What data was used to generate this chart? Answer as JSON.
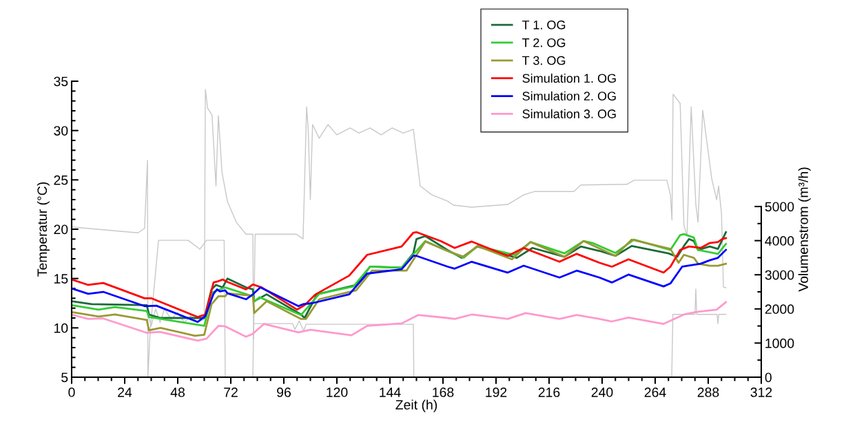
{
  "chart_data": {
    "type": "line",
    "xlabel": "Zeit (h)",
    "ylabel": "Temperatur (°C)",
    "y2label": "Volumenstrom (m³/h)",
    "xlim": [
      0,
      312
    ],
    "xticks": [
      0,
      24,
      48,
      72,
      96,
      120,
      144,
      168,
      192,
      216,
      240,
      264,
      288,
      312
    ],
    "ylim": [
      5,
      35
    ],
    "yticks": [
      5,
      10,
      15,
      20,
      25,
      30,
      35
    ],
    "y2lim": [
      0,
      8670
    ],
    "y2ticks": [
      0,
      1000,
      2000,
      3000,
      4000,
      5000
    ],
    "legend": "top",
    "series": [
      {
        "axis": "y2",
        "color": "#c8c8c8",
        "x": [
          0,
          22.8,
          30,
          33,
          34.3,
          34.5,
          35.6,
          39.3,
          52.7,
          58,
          61,
          69,
          69.5,
          82,
          82.3,
          100,
          101,
          103,
          105,
          106,
          154.6,
          154.8,
          271.5,
          272,
          282,
          282.4,
          282.8,
          292,
          292.4,
          292.8,
          296
        ],
        "values": [
          4400,
          4270,
          4230,
          4360,
          6350,
          20,
          1430,
          4010,
          4010,
          3750,
          4010,
          4010,
          0,
          0,
          1570,
          1570,
          1400,
          1650,
          1350,
          1550,
          1550,
          0,
          0,
          1840,
          1840,
          2580,
          1840,
          1840,
          1570,
          1840,
          1840
        ]
      },
      {
        "axis": "y2",
        "color": "#c8c8c8",
        "x": [
          34.6,
          36,
          38,
          40,
          42,
          45,
          48,
          51,
          54,
          57,
          60,
          60.5,
          61.5,
          63.5,
          65.3,
          66.4,
          68,
          70.5,
          74.5,
          78.9,
          82,
          82.3,
          83,
          101.6,
          104.7,
          106.3,
          107,
          108,
          109,
          112,
          116,
          120,
          126,
          130,
          135,
          140,
          145,
          150,
          154.6,
          157.7,
          163,
          170,
          172.7,
          181,
          197.3,
          204.5,
          209.6,
          227.2,
          230.4,
          251.2,
          254.4,
          269.3,
          270.9,
          271.6,
          272.1,
          275.3,
          277,
          278.4,
          280.3,
          282.4,
          283.4,
          285.5,
          289.6,
          291.8,
          292.7,
          294,
          294.9,
          296
        ],
        "values": [
          1800,
          1500,
          2000,
          1600,
          2000,
          1700,
          1900,
          1600,
          1800,
          1600,
          1700,
          8430,
          7880,
          7680,
          5600,
          7660,
          6010,
          5140,
          4540,
          4190,
          4190,
          1110,
          4190,
          4190,
          4050,
          7920,
          7300,
          5200,
          7400,
          7000,
          7400,
          7100,
          7300,
          7150,
          7300,
          7100,
          7300,
          7150,
          7260,
          5600,
          5340,
          5160,
          5040,
          4980,
          5060,
          5340,
          5440,
          5440,
          5630,
          5650,
          5770,
          5770,
          5340,
          4600,
          8290,
          8020,
          4460,
          4130,
          7920,
          5060,
          4540,
          7820,
          5810,
          5200,
          5600,
          4800,
          2640,
          2620
        ]
      },
      {
        "name": "T 1. OG",
        "color": "#1a6b3a",
        "x": [
          0,
          9,
          34,
          35,
          40.2,
          60,
          63.3,
          65.3,
          68.3,
          70.5,
          78.9,
          82,
          82.6,
          88.2,
          103.8,
          105.4,
          111,
          128.7,
          135,
          149.3,
          154.6,
          156,
          160,
          170,
          176.4,
          183.6,
          201.4,
          208.5,
          223,
          230.4,
          238.8,
          246,
          253.4,
          270,
          274,
          277,
          279.3,
          281.5,
          283.4,
          288.7,
          292.4,
          296
        ],
        "values": [
          12.7,
          12.4,
          12.3,
          11.35,
          11.0,
          11.0,
          13.9,
          14.35,
          14.1,
          15.0,
          14.1,
          13.9,
          12.7,
          13.4,
          11.35,
          11.0,
          13.4,
          14.35,
          16.2,
          16.1,
          17.55,
          19.0,
          19.3,
          17.9,
          17.1,
          18.25,
          17.1,
          18.1,
          17.2,
          18.25,
          17.8,
          17.3,
          18.3,
          17.55,
          17.2,
          18.3,
          19.0,
          18.8,
          17.9,
          18.25,
          18.0,
          19.7
        ]
      },
      {
        "name": "T 2. OG",
        "color": "#33cc33",
        "x": [
          0,
          12.2,
          19.6,
          34,
          35,
          60,
          63.6,
          69.5,
          82,
          82.8,
          85,
          103.8,
          112,
          127.5,
          135,
          149.3,
          160,
          170,
          177.4,
          183.6,
          200.4,
          207.6,
          223,
          231.6,
          235.7,
          246,
          254.4,
          270.9,
          275.3,
          277,
          281.5,
          283.4,
          292.4,
          296
        ],
        "values": [
          12.3,
          11.85,
          12.1,
          11.7,
          11.1,
          10.2,
          13.6,
          14.1,
          13.2,
          12.7,
          13.1,
          11.3,
          13.45,
          14.2,
          16.2,
          16.1,
          18.8,
          17.8,
          17.1,
          18.3,
          17.4,
          18.7,
          17.55,
          18.8,
          18.6,
          17.6,
          18.95,
          17.9,
          19.4,
          19.5,
          19.15,
          17.9,
          17.5,
          18.5
        ]
      },
      {
        "name": "T 3. OG",
        "color": "#999933",
        "x": [
          0,
          12.2,
          19.6,
          34,
          35,
          40.2,
          55.8,
          60,
          63.3,
          66.4,
          69.5,
          70.5,
          82,
          82.6,
          88.2,
          103.8,
          106,
          112,
          128.7,
          135.9,
          151.5,
          154.6,
          160,
          170,
          177.4,
          183.6,
          199.2,
          207.6,
          223,
          231.6,
          246,
          253.4,
          270.9,
          274.6,
          277,
          281.5,
          283.4,
          288.7,
          292.4,
          296
        ],
        "values": [
          11.6,
          11.15,
          11.35,
          10.8,
          9.75,
          10.0,
          9.2,
          9.3,
          12.4,
          13.2,
          13.2,
          13.5,
          13.25,
          11.5,
          12.7,
          10.9,
          10.9,
          12.9,
          13.8,
          15.8,
          15.8,
          16.9,
          18.75,
          17.8,
          17.2,
          18.3,
          16.95,
          18.7,
          17.2,
          18.8,
          17.3,
          18.95,
          18.0,
          16.6,
          17.4,
          17.1,
          16.5,
          16.3,
          16.3,
          16.5
        ]
      },
      {
        "name": "Simulation 1. OG",
        "color": "#ff0000",
        "x": [
          0,
          7.5,
          14.3,
          33,
          36,
          57,
          60.5,
          64.2,
          66,
          68.3,
          70,
          78.9,
          82,
          86,
          102,
          105.4,
          110.4,
          125.6,
          133.7,
          149.3,
          154.6,
          156,
          167,
          173.3,
          181,
          197.3,
          204.5,
          220.7,
          228.5,
          238.8,
          244.4,
          251.9,
          267.8,
          270.9,
          275.3,
          279.3,
          284.6,
          288.7,
          292.4,
          294.3,
          296
        ],
        "values": [
          14.9,
          14.35,
          14.55,
          13.0,
          13.0,
          11.1,
          11.35,
          14.6,
          14.7,
          14.9,
          14.7,
          13.9,
          14.4,
          14.1,
          11.85,
          12.3,
          13.4,
          15.3,
          17.4,
          18.25,
          19.65,
          19.7,
          18.8,
          18.1,
          18.75,
          17.3,
          18.1,
          16.7,
          17.5,
          16.6,
          16.2,
          16.95,
          15.6,
          16.2,
          17.9,
          18.25,
          18.1,
          18.6,
          18.7,
          19.0,
          19.1
        ]
      },
      {
        "name": "Simulation 2. OG",
        "color": "#0000ff",
        "x": [
          0,
          7.5,
          14.3,
          33,
          38.3,
          57,
          60.5,
          64.2,
          65.8,
          67,
          69.5,
          70.5,
          78.9,
          82,
          85.4,
          102.6,
          104.7,
          108.8,
          125.6,
          133.7,
          149.3,
          154.6,
          156,
          170.2,
          173.3,
          181,
          197.3,
          204.5,
          220.7,
          228.5,
          238.8,
          244.4,
          251.9,
          267.8,
          270.9,
          276.2,
          284.6,
          288.7,
          292.4,
          296
        ],
        "values": [
          14.0,
          13.45,
          13.65,
          12.2,
          12.25,
          10.6,
          11.2,
          13.45,
          13.9,
          13.7,
          13.8,
          13.5,
          12.9,
          13.4,
          14.1,
          12.2,
          12.4,
          12.5,
          13.4,
          15.5,
          15.95,
          17.3,
          17.3,
          16.2,
          16.0,
          16.7,
          15.6,
          16.3,
          15.1,
          15.8,
          15.1,
          14.6,
          15.4,
          14.2,
          14.5,
          16.2,
          16.5,
          16.85,
          17.1,
          17.9
        ]
      },
      {
        "name": "Simulation 3. OG",
        "color": "#ff99cc",
        "x": [
          0,
          7.5,
          14.3,
          34,
          39.9,
          57,
          61,
          66.4,
          69.5,
          78.9,
          82,
          83,
          87,
          102.6,
          108,
          126.6,
          133.7,
          149.3,
          156.8,
          170,
          173.3,
          181,
          197.3,
          205.4,
          220.7,
          228.5,
          238.8,
          244.4,
          252,
          267.8,
          277,
          282.4,
          291.8,
          296
        ],
        "values": [
          11.35,
          10.9,
          10.95,
          9.5,
          9.6,
          8.7,
          8.9,
          10.2,
          10.15,
          9.1,
          9.4,
          9.6,
          10.4,
          9.55,
          9.8,
          9.25,
          10.2,
          10.45,
          11.3,
          11.0,
          10.9,
          11.35,
          10.9,
          11.5,
          10.9,
          11.3,
          10.9,
          10.65,
          11.05,
          10.4,
          11.35,
          11.6,
          11.85,
          12.6
        ]
      }
    ]
  }
}
